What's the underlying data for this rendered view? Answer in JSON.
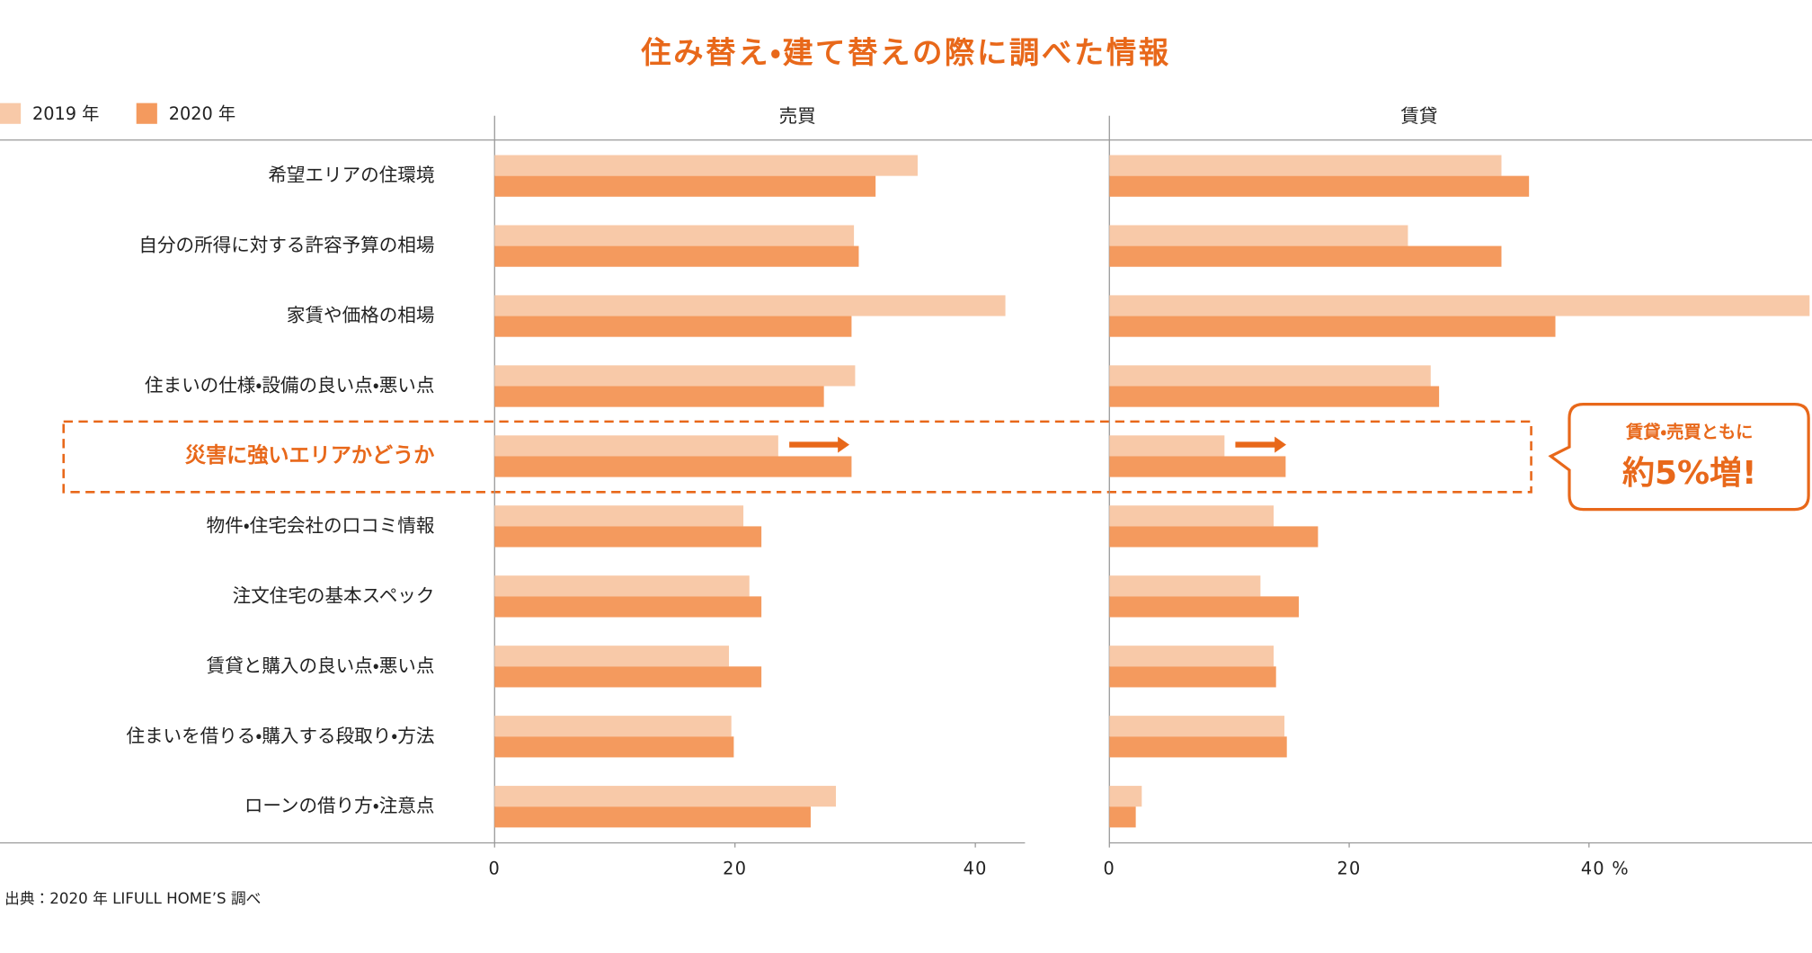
{
  "chart_data": {
    "type": "bar",
    "orientation": "horizontal",
    "title": "住み替え・建て替えの際に調べた情報",
    "legend_position": "top-left",
    "series": [
      {
        "name": "2019 年",
        "color": "#f8c9a8"
      },
      {
        "name": "2020 年",
        "color": "#f49a5e"
      }
    ],
    "categories": [
      "希望エリアの住環境",
      "自分の所得に対する許容予算の相場",
      "家賃や価格の相場",
      "住まいの仕様・設備の良い点・悪い点",
      "災害に強いエリアかどうか",
      "物件・住宅会社の口コミ情報",
      "注文住宅の基本スペック",
      "賃貸と購入の良い点・悪い点",
      "住まいを借りる・購入する段取り・方法",
      "ローンの借り方・注意点"
    ],
    "panels": [
      {
        "title": "売買",
        "values": [
          [
            35.2,
            29.9,
            42.5,
            30.0,
            23.6,
            20.7,
            21.2,
            19.5,
            19.7,
            28.4
          ],
          [
            31.7,
            30.3,
            29.7,
            27.4,
            29.7,
            22.2,
            22.2,
            22.2,
            19.9,
            26.3
          ]
        ],
        "xlim": [
          0,
          44.1
        ],
        "xticks": [
          0,
          20,
          40
        ]
      },
      {
        "title": "賃貸",
        "values": [
          [
            32.7,
            24.9,
            58.4,
            26.8,
            9.6,
            13.7,
            12.6,
            13.7,
            14.6,
            2.7
          ],
          [
            35.0,
            32.7,
            37.2,
            27.5,
            14.7,
            17.4,
            15.8,
            13.9,
            14.8,
            2.2
          ]
        ],
        "xlim": [
          0,
          58.6
        ],
        "xticks": [
          0,
          20,
          {
            "value": 40,
            "label": "40 %"
          }
        ]
      }
    ],
    "annotation": {
      "category_index": 4,
      "lines": [
        "賃貸・売買ともに",
        "約5%増!"
      ]
    },
    "source": "出典：2020 年 LIFULL HOME’S 調べ"
  }
}
